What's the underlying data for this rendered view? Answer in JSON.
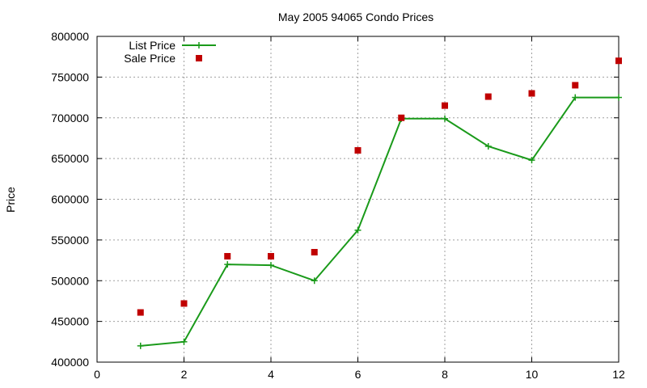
{
  "chart_data": {
    "type": "line",
    "title": "May 2005 94065 Condo Prices",
    "xlabel": "",
    "ylabel": "Price",
    "xlim": [
      0,
      12
    ],
    "ylim": [
      400000,
      800000
    ],
    "x_ticks": [
      0,
      2,
      4,
      6,
      8,
      10,
      12
    ],
    "y_ticks": [
      400000,
      450000,
      500000,
      550000,
      600000,
      650000,
      700000,
      750000,
      800000
    ],
    "grid": true,
    "legend_position": "top-left",
    "series": [
      {
        "name": "List Price",
        "style": "line-with-plus-markers",
        "color": "#1a9a1a",
        "x": [
          1,
          2,
          3,
          4,
          5,
          6,
          7,
          8,
          9,
          10,
          11,
          12
        ],
        "values": [
          420000,
          425000,
          520000,
          519000,
          500000,
          562000,
          699000,
          699000,
          665000,
          648000,
          725000,
          725000
        ]
      },
      {
        "name": "Sale Price",
        "style": "square-markers",
        "color": "#c00000",
        "x": [
          1,
          2,
          3,
          4,
          5,
          6,
          7,
          8,
          9,
          10,
          11,
          12
        ],
        "values": [
          461000,
          472000,
          530000,
          530000,
          535000,
          660000,
          700000,
          715000,
          726000,
          730000,
          740000,
          770000
        ]
      }
    ]
  }
}
